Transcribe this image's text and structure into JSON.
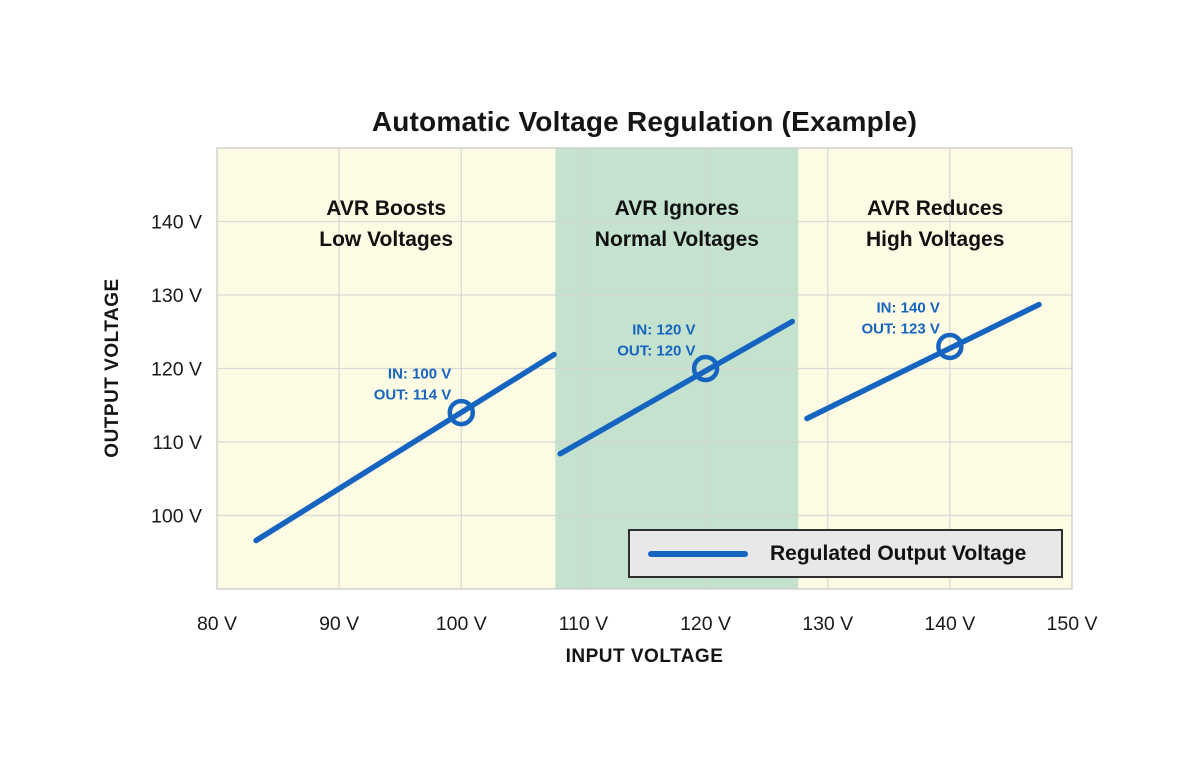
{
  "chart_data": {
    "type": "line",
    "title": "Automatic Voltage Regulation (Example)",
    "xlabel": "INPUT VOLTAGE",
    "ylabel": "OUTPUT VOLTAGE",
    "xlim": [
      80,
      150
    ],
    "ylim": [
      90,
      150
    ],
    "grid": true,
    "x_ticks": [
      {
        "v": 80,
        "label": "80 V"
      },
      {
        "v": 90,
        "label": "90 V"
      },
      {
        "v": 100,
        "label": "100 V"
      },
      {
        "v": 110,
        "label": "110 V"
      },
      {
        "v": 120,
        "label": "120 V"
      },
      {
        "v": 130,
        "label": "130 V"
      },
      {
        "v": 140,
        "label": "140 V"
      },
      {
        "v": 150,
        "label": "150 V"
      }
    ],
    "y_ticks": [
      {
        "v": 100,
        "label": "100 V"
      },
      {
        "v": 110,
        "label": "110 V"
      },
      {
        "v": 120,
        "label": "120 V"
      },
      {
        "v": 130,
        "label": "130 V"
      },
      {
        "v": 140,
        "label": "140 V"
      }
    ],
    "regions": [
      {
        "name": "boost",
        "from": 80,
        "to": 107.7,
        "color": "#FDFBE3",
        "annotation": [
          "AVR Boosts",
          "Low Voltages"
        ]
      },
      {
        "name": "normal",
        "from": 107.7,
        "to": 127.6,
        "color": "#C5E2CF",
        "annotation": [
          "AVR Ignores",
          "Normal Voltages"
        ]
      },
      {
        "name": "reduce",
        "from": 127.6,
        "to": 150,
        "color": "#FDFBE3",
        "annotation": [
          "AVR Reduces",
          "High Voltages"
        ]
      }
    ],
    "series": [
      {
        "name": "Regulated Output Voltage",
        "color": "#1565C0",
        "segments": [
          [
            [
              83.2,
              96.6
            ],
            [
              107.6,
              121.9
            ]
          ],
          [
            [
              108.1,
              108.4
            ],
            [
              127.1,
              126.4
            ]
          ],
          [
            [
              128.3,
              113.2
            ],
            [
              147.3,
              128.7
            ]
          ]
        ]
      }
    ],
    "markers": [
      {
        "in": 100,
        "out": 114,
        "label_lines": [
          "IN: 100 V",
          "OUT: 114 V"
        ]
      },
      {
        "in": 120,
        "out": 120,
        "label_lines": [
          "IN: 120 V",
          "OUT: 120 V"
        ]
      },
      {
        "in": 140,
        "out": 123,
        "label_lines": [
          "IN: 140 V",
          "OUT: 123 V"
        ]
      }
    ],
    "legend": {
      "label": "Regulated Output Voltage",
      "position": "bottom-right"
    },
    "colors": {
      "line": "#1565C0",
      "marker_label_text": "#1565C0",
      "region_yellow": "#FDFBE3",
      "region_green": "#C5E2CF",
      "grid": "#D4D4D4",
      "plot_border": "#CCCCCC",
      "legend_bg": "#E8E8E8",
      "legend_border": "#2e2e2e",
      "text": "#151515"
    }
  }
}
